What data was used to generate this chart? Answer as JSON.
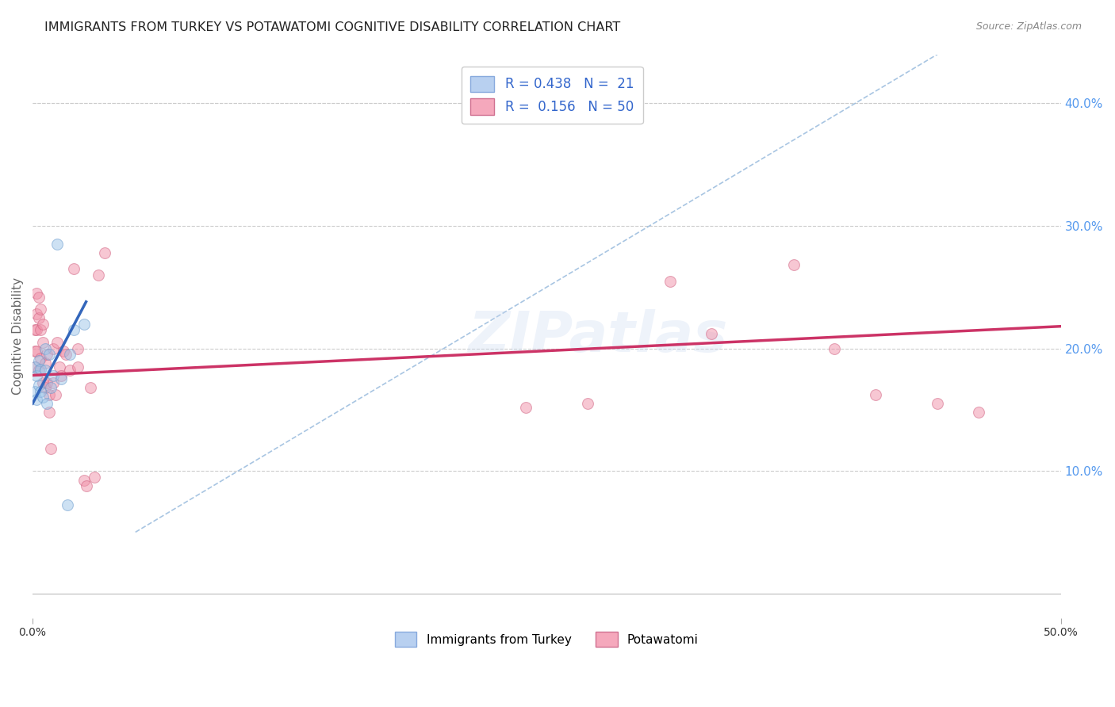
{
  "title": "IMMIGRANTS FROM TURKEY VS POTAWATOMI COGNITIVE DISABILITY CORRELATION CHART",
  "source": "Source: ZipAtlas.com",
  "ylabel": "Cognitive Disability",
  "right_yticks": [
    "10.0%",
    "20.0%",
    "30.0%",
    "40.0%"
  ],
  "right_ytick_vals": [
    0.1,
    0.2,
    0.3,
    0.4
  ],
  "xlim": [
    0.0,
    0.5
  ],
  "ylim": [
    -0.02,
    0.44
  ],
  "watermark": "ZIPatlas",
  "turkey_scatter_x": [
    0.001,
    0.001,
    0.002,
    0.002,
    0.003,
    0.003,
    0.004,
    0.004,
    0.005,
    0.006,
    0.006,
    0.007,
    0.008,
    0.009,
    0.01,
    0.012,
    0.014,
    0.017,
    0.018,
    0.02,
    0.025
  ],
  "turkey_scatter_y": [
    0.185,
    0.165,
    0.178,
    0.158,
    0.19,
    0.17,
    0.183,
    0.165,
    0.16,
    0.2,
    0.182,
    0.155,
    0.195,
    0.168,
    0.178,
    0.285,
    0.175,
    0.072,
    0.195,
    0.215,
    0.22
  ],
  "potawatomi_scatter_x": [
    0.001,
    0.001,
    0.001,
    0.002,
    0.002,
    0.002,
    0.002,
    0.003,
    0.003,
    0.003,
    0.004,
    0.004,
    0.004,
    0.005,
    0.005,
    0.005,
    0.006,
    0.006,
    0.007,
    0.007,
    0.008,
    0.008,
    0.009,
    0.01,
    0.01,
    0.011,
    0.012,
    0.013,
    0.014,
    0.015,
    0.016,
    0.018,
    0.02,
    0.022,
    0.022,
    0.025,
    0.026,
    0.028,
    0.03,
    0.032,
    0.035,
    0.24,
    0.27,
    0.31,
    0.33,
    0.37,
    0.39,
    0.41,
    0.44,
    0.46
  ],
  "potawatomi_scatter_y": [
    0.215,
    0.198,
    0.185,
    0.245,
    0.228,
    0.215,
    0.198,
    0.242,
    0.225,
    0.182,
    0.232,
    0.215,
    0.192,
    0.22,
    0.205,
    0.172,
    0.188,
    0.168,
    0.195,
    0.172,
    0.162,
    0.148,
    0.118,
    0.2,
    0.172,
    0.162,
    0.205,
    0.185,
    0.178,
    0.198,
    0.195,
    0.182,
    0.265,
    0.2,
    0.185,
    0.092,
    0.088,
    0.168,
    0.095,
    0.26,
    0.278,
    0.152,
    0.155,
    0.255,
    0.212,
    0.268,
    0.2,
    0.162,
    0.155,
    0.148
  ],
  "turkey_line_x": [
    0.0,
    0.026
  ],
  "turkey_line_y": [
    0.155,
    0.238
  ],
  "potawatomi_line_x": [
    0.0,
    0.5
  ],
  "potawatomi_line_y": [
    0.178,
    0.218
  ],
  "diagonal_line_x": [
    0.05,
    0.44
  ],
  "diagonal_line_y": [
    0.05,
    0.44
  ],
  "scatter_alpha": 0.5,
  "scatter_size": 100,
  "turkey_color": "#9dc4e8",
  "turkey_edge_color": "#6699cc",
  "potawatomi_color": "#f090a8",
  "potawatomi_edge_color": "#d06080",
  "turkey_line_color": "#3366bb",
  "potawatomi_line_color": "#cc3366",
  "diagonal_color": "#99bbdd",
  "bg_color": "#ffffff",
  "grid_color": "#cccccc",
  "title_color": "#222222",
  "title_fontsize": 11.5,
  "axis_label_color": "#666666",
  "tick_color_right": "#5599ee",
  "tick_color_bottom": "#333333"
}
